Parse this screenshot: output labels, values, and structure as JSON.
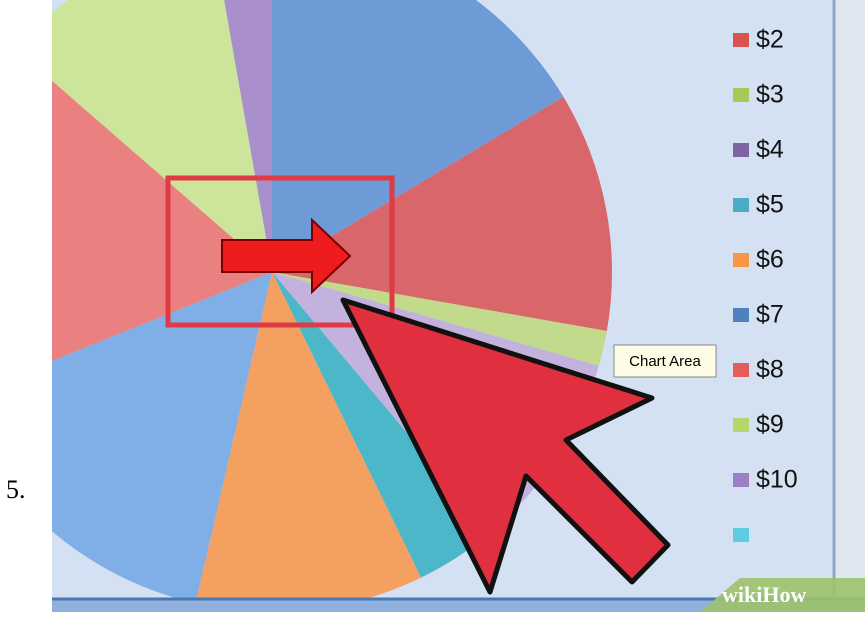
{
  "step": "5.",
  "legend": [
    "$2",
    "$3",
    "$4",
    "$5",
    "$6",
    "$7",
    "$8",
    "$9",
    "$10"
  ],
  "tooltip": "Chart Area",
  "watermark": "wikiHow"
}
